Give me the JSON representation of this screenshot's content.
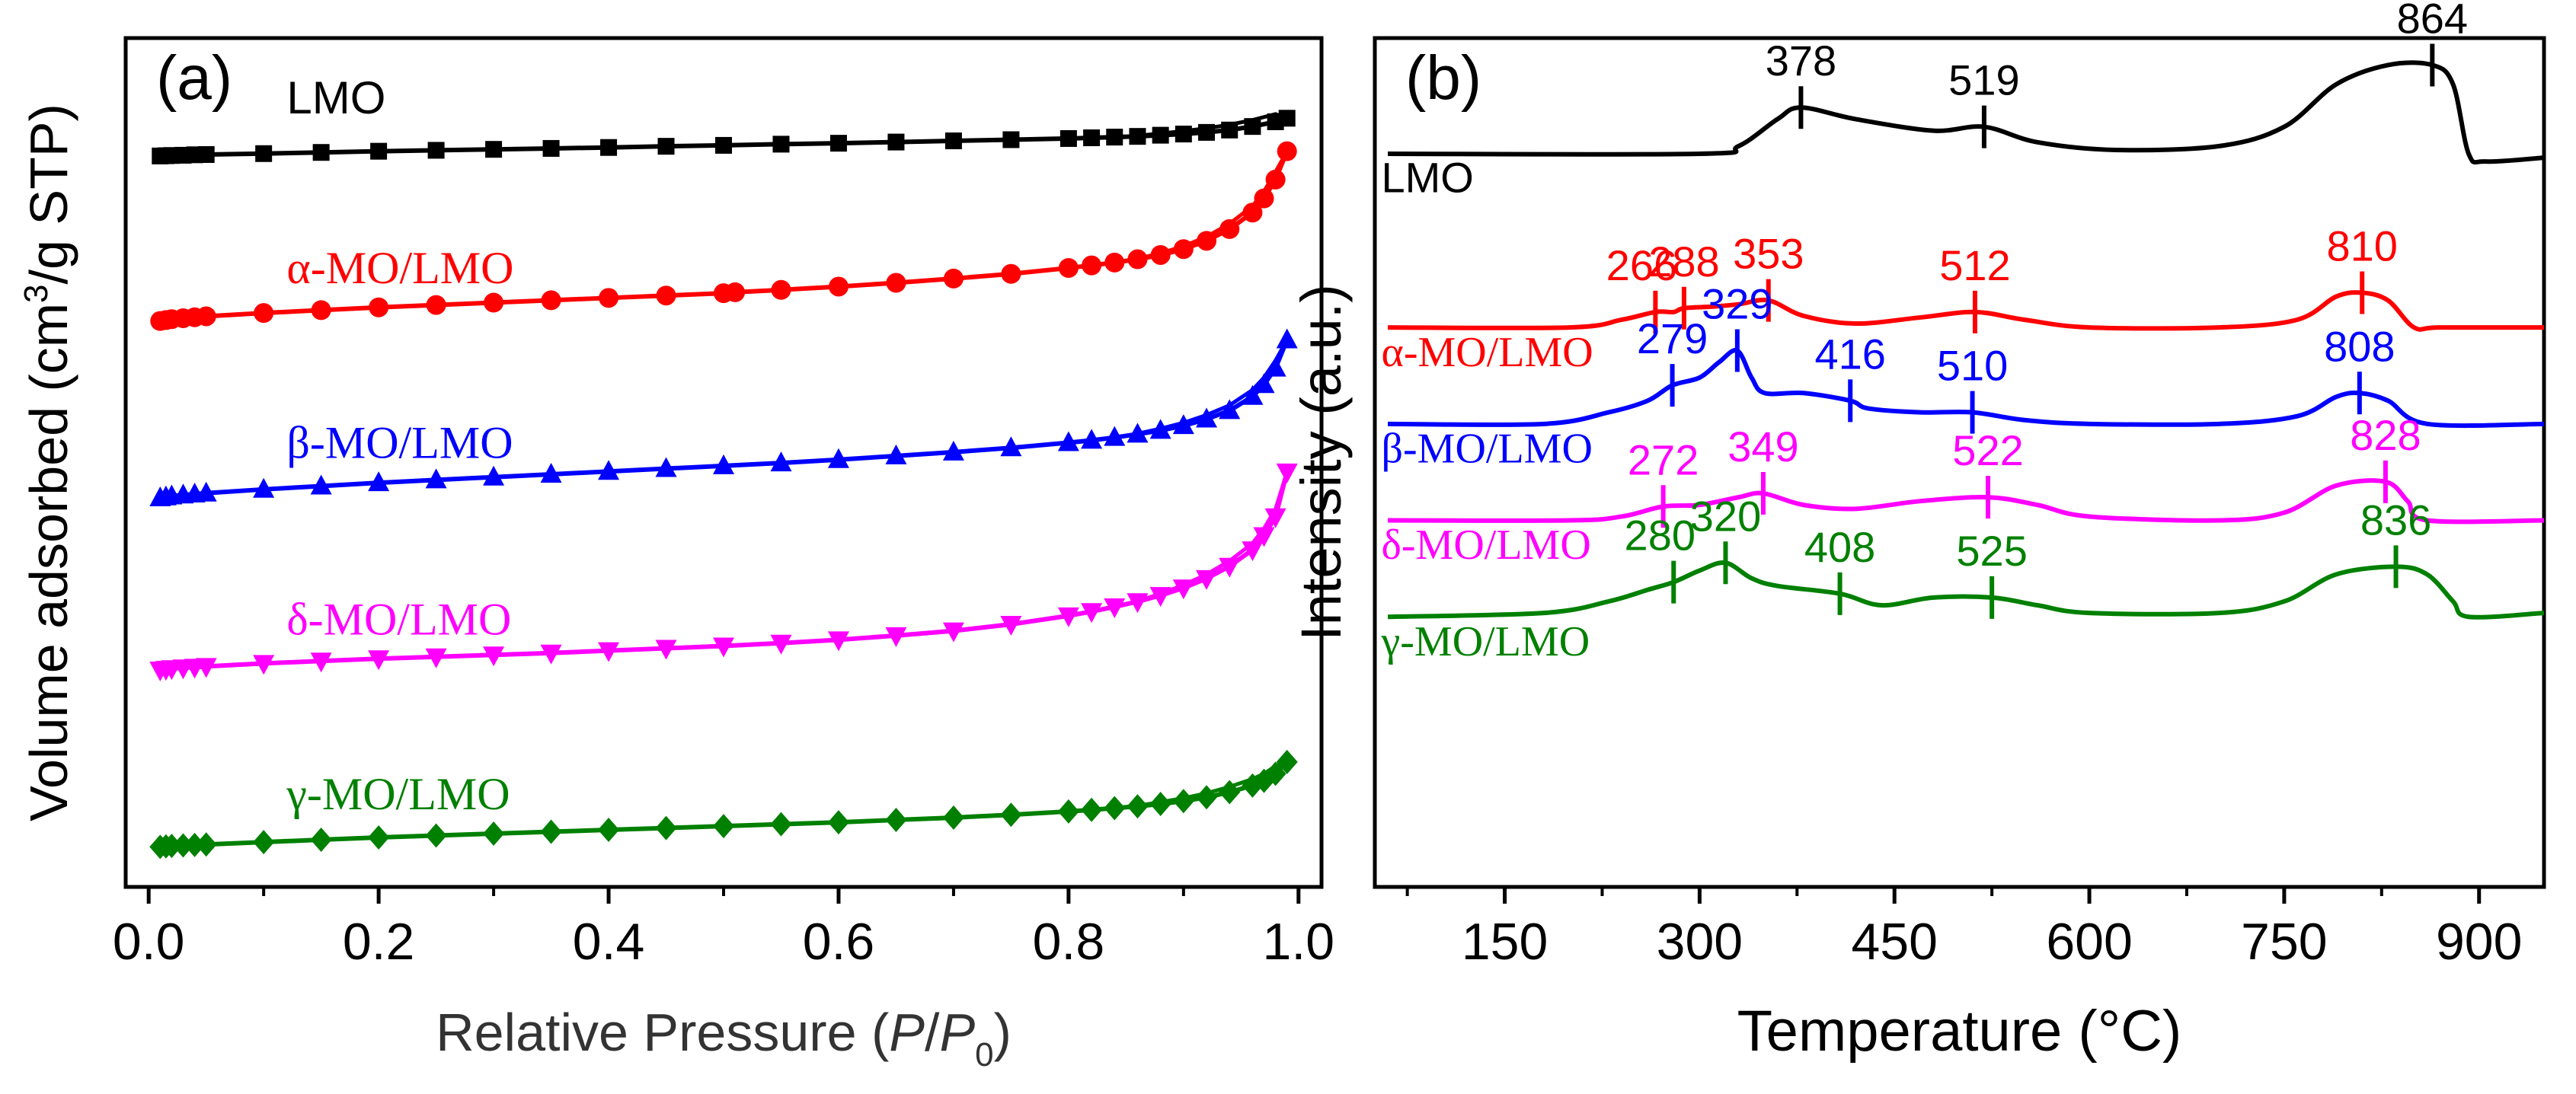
{
  "figure": {
    "panels": [
      {
        "type": "line",
        "panel_label": "(a)",
        "x_label_parts": [
          "Relative Pressure (",
          "P",
          "/",
          "P",
          "0",
          ")"
        ],
        "y_label_parts": [
          "Volume adsorbed (cm",
          "3",
          "/g STP)"
        ],
        "xlim": [
          -0.02,
          1.02
        ],
        "ylim": [
          -50,
          310
        ],
        "x_ticks": [
          0.0,
          0.2,
          0.4,
          0.6,
          0.8,
          1.0
        ],
        "x_tick_labels": [
          "0.0",
          "0.2",
          "0.4",
          "0.6",
          "0.8",
          "1.0"
        ],
        "x_minor_ticks": [
          0.1,
          0.3,
          0.5,
          0.7,
          0.9
        ],
        "grid": false,
        "series": [
          {
            "name": "LMO",
            "color": "#000000",
            "marker": "square",
            "offset": 260,
            "x": [
              0.01,
              0.015,
              0.02,
              0.03,
              0.04,
              0.05,
              0.1,
              0.15,
              0.2,
              0.25,
              0.3,
              0.35,
              0.4,
              0.45,
              0.5,
              0.55,
              0.6,
              0.65,
              0.7,
              0.75,
              0.8,
              0.82,
              0.84,
              0.86,
              0.88,
              0.9,
              0.92,
              0.94,
              0.96,
              0.98,
              0.99
            ],
            "y": [
              0,
              0.1,
              0.2,
              0.3,
              0.5,
              0.6,
              1,
              1.5,
              2,
              2.4,
              2.8,
              3.2,
              3.6,
              4.1,
              4.5,
              5,
              5.4,
              5.9,
              6.4,
              6.9,
              7.4,
              7.7,
              8,
              8.3,
              8.8,
              9.3,
              10,
              11,
              12.5,
              14.5,
              16
            ]
          },
          {
            "name": "α-MO/LMO",
            "color": "#ff0000",
            "marker": "circle",
            "offset": 190,
            "x": [
              0.01,
              0.015,
              0.02,
              0.03,
              0.04,
              0.05,
              0.1,
              0.15,
              0.2,
              0.25,
              0.3,
              0.35,
              0.4,
              0.45,
              0.5,
              0.51,
              0.55,
              0.6,
              0.65,
              0.7,
              0.75,
              0.8,
              0.82,
              0.84,
              0.86,
              0.88,
              0.9,
              0.92,
              0.94,
              0.96,
              0.97,
              0.98,
              0.99
            ],
            "y": [
              0,
              0.4,
              0.8,
              1.2,
              1.6,
              2,
              3.4,
              4.6,
              5.8,
              6.8,
              7.8,
              8.8,
              9.8,
              10.8,
              11.8,
              12.2,
              13.2,
              14.6,
              16.2,
              18,
              20,
              22.5,
              23.6,
              24.8,
              26.2,
              28,
              30.5,
              34,
              39,
              46,
              52,
              60,
              72
            ]
          },
          {
            "name": "β-MO/LMO",
            "color": "#0000ff",
            "marker": "triangle-up",
            "offset": 115,
            "x": [
              0.01,
              0.015,
              0.02,
              0.03,
              0.04,
              0.05,
              0.1,
              0.15,
              0.2,
              0.25,
              0.3,
              0.35,
              0.4,
              0.45,
              0.5,
              0.55,
              0.6,
              0.65,
              0.7,
              0.75,
              0.8,
              0.82,
              0.84,
              0.86,
              0.88,
              0.9,
              0.92,
              0.94,
              0.96,
              0.97,
              0.98,
              0.99
            ],
            "y": [
              0,
              0.4,
              0.8,
              1.2,
              1.6,
              2,
              3.6,
              5,
              6.4,
              7.6,
              8.8,
              10,
              11.2,
              12.4,
              13.6,
              14.8,
              16.2,
              17.8,
              19.4,
              21.2,
              23.4,
              24.4,
              25.6,
              27,
              28.6,
              30.6,
              33.4,
              37,
              43,
              48,
              55,
              67
            ]
          },
          {
            "name": "δ-MO/LMO",
            "color": "#ff00ff",
            "marker": "triangle-down",
            "offset": 42,
            "x": [
              0.01,
              0.015,
              0.02,
              0.03,
              0.04,
              0.05,
              0.1,
              0.15,
              0.2,
              0.25,
              0.3,
              0.35,
              0.4,
              0.45,
              0.5,
              0.55,
              0.6,
              0.65,
              0.7,
              0.75,
              0.8,
              0.82,
              0.84,
              0.86,
              0.88,
              0.9,
              0.92,
              0.94,
              0.96,
              0.97,
              0.98,
              0.99
            ],
            "y": [
              0,
              0.3,
              0.6,
              0.9,
              1.2,
              1.5,
              2.8,
              3.8,
              4.8,
              5.6,
              6.4,
              7.2,
              8.2,
              9.2,
              10.2,
              11.4,
              12.8,
              14.6,
              16.6,
              19.4,
              23,
              24.8,
              26.8,
              29,
              31.6,
              34.8,
              38.8,
              44,
              51,
              57,
              65,
              84
            ]
          },
          {
            "name": "γ-MO/LMO",
            "color": "#008000",
            "marker": "diamond",
            "offset": -33,
            "x": [
              0.01,
              0.015,
              0.02,
              0.03,
              0.04,
              0.05,
              0.1,
              0.15,
              0.2,
              0.25,
              0.3,
              0.35,
              0.4,
              0.45,
              0.5,
              0.55,
              0.6,
              0.65,
              0.7,
              0.75,
              0.8,
              0.82,
              0.84,
              0.86,
              0.88,
              0.9,
              0.92,
              0.94,
              0.96,
              0.97,
              0.98,
              0.99
            ],
            "y": [
              0,
              0.2,
              0.4,
              0.6,
              0.8,
              1,
              2,
              3,
              4,
              4.8,
              5.6,
              6.4,
              7.2,
              8,
              8.8,
              9.6,
              10.4,
              11.4,
              12.4,
              13.6,
              15,
              15.7,
              16.4,
              17.2,
              18.2,
              19.4,
              21,
              23.2,
              26,
              28,
              31,
              36
            ]
          }
        ],
        "series_labels": [
          {
            "text": "LMO",
            "color": "#000000",
            "at": [
              0.12,
              278
            ],
            "serif": false
          },
          {
            "text": "α-MO/LMO",
            "color": "#ff0000",
            "at": [
              0.12,
              206
            ],
            "serif": true
          },
          {
            "text": "β-MO/LMO",
            "color": "#0000ff",
            "at": [
              0.12,
              132
            ],
            "serif": true
          },
          {
            "text": "δ-MO/LMO",
            "color": "#ff00ff",
            "at": [
              0.12,
              57
            ],
            "serif": true
          },
          {
            "text": "γ-MO/LMO",
            "color": "#008000",
            "at": [
              0.12,
              -17
            ],
            "serif": true
          }
        ]
      },
      {
        "type": "line",
        "panel_label": "(b)",
        "x_label": "Temperature (°C)",
        "y_label": "Intensity (a.u.)",
        "xlim": [
          50,
          950
        ],
        "ylim": [
          -10,
          100
        ],
        "x_ticks": [
          150,
          300,
          450,
          600,
          750,
          900
        ],
        "x_tick_labels": [
          "150",
          "300",
          "450",
          "600",
          "750",
          "900"
        ],
        "x_minor_ticks": [
          75,
          225,
          375,
          525,
          675,
          825
        ],
        "grid": false,
        "series": [
          {
            "name": "LMO",
            "color": "#000000",
            "baseline": 85,
            "x": [
              60,
              300,
              330,
              360,
              378,
              420,
              480,
              519,
              560,
              620,
              700,
              750,
              790,
              830,
              864,
              880,
              892,
              905,
              950
            ],
            "y": [
              85,
              85,
              86,
              89.5,
              91,
              89.5,
              88,
              88.5,
              86.5,
              85.5,
              86,
              88.5,
              94,
              96.5,
              96.5,
              94,
              85,
              84,
              84.5
            ],
            "peaks": [
              {
                "label": "378",
                "x": 378
              },
              {
                "label": "519",
                "x": 519
              },
              {
                "label": "864",
                "x": 864
              }
            ]
          },
          {
            "name": "α-MO/LMO",
            "color": "#ff0000",
            "baseline": 62.5,
            "x": [
              60,
              200,
              240,
              266,
              280,
              288,
              310,
              330,
              353,
              380,
              420,
              470,
              512,
              550,
              600,
              700,
              760,
              790,
              810,
              830,
              850,
              870,
              950
            ],
            "y": [
              62.5,
              62.5,
              63.5,
              64.5,
              64.5,
              65,
              65.2,
              65.5,
              66,
              64,
              63,
              63.8,
              64.5,
              63.5,
              62.5,
              62.5,
              63.5,
              66.5,
              67,
              66,
              62.5,
              62.5,
              62.5
            ],
            "peaks": [
              {
                "label": "266",
                "x": 266
              },
              {
                "label": "288",
                "x": 288
              },
              {
                "label": "353",
                "x": 353
              },
              {
                "label": "512",
                "x": 512
              },
              {
                "label": "810",
                "x": 810
              }
            ]
          },
          {
            "name": "β-MO/LMO",
            "color": "#0000ff",
            "baseline": 50,
            "x": [
              60,
              180,
              230,
              260,
              279,
              300,
              315,
              329,
              340,
              350,
              380,
              416,
              430,
              470,
              510,
              550,
              600,
              700,
              760,
              790,
              808,
              830,
              860,
              950
            ],
            "y": [
              50,
              50,
              51.5,
              53,
              55,
              56,
              58,
              59.5,
              56,
              54,
              54,
              53,
              52,
              51.5,
              51.5,
              50.5,
              50,
              50,
              51,
              53.5,
              54,
              53,
              50,
              50
            ],
            "peaks": [
              {
                "label": "279",
                "x": 279
              },
              {
                "label": "329",
                "x": 329
              },
              {
                "label": "416",
                "x": 416
              },
              {
                "label": "510",
                "x": 510
              },
              {
                "label": "808",
                "x": 808
              }
            ]
          },
          {
            "name": "δ-MO/LMO",
            "color": "#ff00ff",
            "baseline": 37.5,
            "x": [
              60,
              200,
              240,
              272,
              300,
              330,
              349,
              380,
              420,
              470,
              522,
              560,
              600,
              700,
              750,
              790,
              828,
              845,
              860,
              950
            ],
            "y": [
              37.5,
              37.5,
              38,
              39.3,
              39.5,
              40.5,
              41,
              39.5,
              39,
              40,
              40.5,
              39.5,
              38,
              37.5,
              38.5,
              42,
              42.5,
              40,
              37.5,
              37.5
            ],
            "peaks": [
              {
                "label": "272",
                "x": 272
              },
              {
                "label": "349",
                "x": 349
              },
              {
                "label": "522",
                "x": 522
              },
              {
                "label": "828",
                "x": 828
              }
            ]
          },
          {
            "name": "γ-MO/LMO",
            "color": "#008000",
            "baseline": 25,
            "x": [
              60,
              180,
              230,
              260,
              280,
              300,
              320,
              340,
              360,
              408,
              440,
              480,
              525,
              560,
              600,
              700,
              750,
              790,
              836,
              860,
              880,
              892,
              950
            ],
            "y": [
              25,
              25.5,
              27,
              28.5,
              29.5,
              31,
              32,
              30,
              29,
              28,
              26.5,
              27.5,
              27.5,
              26.5,
              25.5,
              25.5,
              27,
              30.5,
              31.5,
              30.5,
              27,
              25,
              25.5
            ],
            "peaks": [
              {
                "label": "280",
                "x": 280
              },
              {
                "label": "320",
                "x": 320
              },
              {
                "label": "408",
                "x": 408
              },
              {
                "label": "525",
                "x": 525
              },
              {
                "label": "836",
                "x": 836
              }
            ]
          }
        ],
        "series_labels": [
          {
            "text": "LMO",
            "color": "#000000",
            "at": [
              55,
              80
            ],
            "serif": false
          },
          {
            "text": "α-MO/LMO",
            "color": "#ff0000",
            "at": [
              55,
              57.5
            ],
            "serif": true
          },
          {
            "text": "β-MO/LMO",
            "color": "#0000ff",
            "at": [
              55,
              45
            ],
            "serif": true
          },
          {
            "text": "δ-MO/LMO",
            "color": "#ff00ff",
            "at": [
              55,
              32.5
            ],
            "serif": true
          },
          {
            "text": "γ-MO/LMO",
            "color": "#008000",
            "at": [
              55,
              20
            ],
            "serif": true
          }
        ]
      }
    ]
  }
}
